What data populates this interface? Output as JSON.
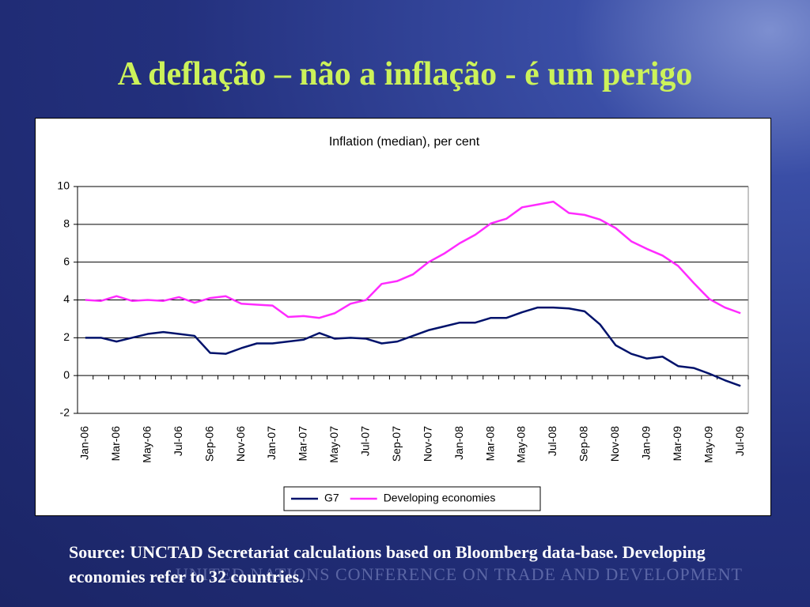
{
  "slide_title": "A deflação – não a inflação - é um perigo",
  "chart_data": {
    "type": "line",
    "title": "Inflation (median), per cent",
    "categories": [
      "Jan-06",
      null,
      "Mar-06",
      null,
      "May-06",
      null,
      "Jul-06",
      null,
      "Sep-06",
      null,
      "Nov-06",
      null,
      "Jan-07",
      null,
      "Mar-07",
      null,
      "May-07",
      null,
      "Jul-07",
      null,
      "Sep-07",
      null,
      "Nov-07",
      null,
      "Jan-08",
      null,
      "Mar-08",
      null,
      "May-08",
      null,
      "Jul-08",
      null,
      "Sep-08",
      null,
      "Nov-08",
      null,
      "Jan-09",
      null,
      "Mar-09",
      null,
      "May-09",
      null,
      "Jul-09"
    ],
    "series": [
      {
        "name": "G7",
        "color": "#00126b",
        "values": [
          2.0,
          2.0,
          1.8,
          2.0,
          2.2,
          2.3,
          2.2,
          2.1,
          1.2,
          1.15,
          1.45,
          1.7,
          1.7,
          1.8,
          1.9,
          2.25,
          1.95,
          2.0,
          1.95,
          1.7,
          1.8,
          2.1,
          2.4,
          2.6,
          2.8,
          2.8,
          3.05,
          3.05,
          3.35,
          3.6,
          3.6,
          3.55,
          3.4,
          2.7,
          1.6,
          1.15,
          0.9,
          1.0,
          0.5,
          0.4,
          0.1,
          -0.25,
          -0.55
        ]
      },
      {
        "name": "Developing economies",
        "color": "#ff2bff",
        "values": [
          4.0,
          3.95,
          4.2,
          3.95,
          4.0,
          3.95,
          4.15,
          3.85,
          4.1,
          4.2,
          3.8,
          3.75,
          3.7,
          3.1,
          3.15,
          3.05,
          3.3,
          3.8,
          4.0,
          4.85,
          5.0,
          5.35,
          6.0,
          6.45,
          7.0,
          7.45,
          8.05,
          8.3,
          8.9,
          9.05,
          9.2,
          8.6,
          8.5,
          8.25,
          7.8,
          7.1,
          6.7,
          6.35,
          5.8,
          4.9,
          4.05,
          3.6,
          3.3
        ]
      }
    ],
    "ylim": [
      -2,
      10
    ],
    "yticks": [
      -2,
      0,
      2,
      4,
      6,
      8,
      10
    ],
    "grid": true,
    "legend": "bottom"
  },
  "source": "Source: UNCTAD Secretariat calculations based on Bloomberg data-base. Developing  economies refer to 32 countries.",
  "footer": "UNITED NATIONS CONFERENCE ON TRADE AND DEVELOPMENT"
}
